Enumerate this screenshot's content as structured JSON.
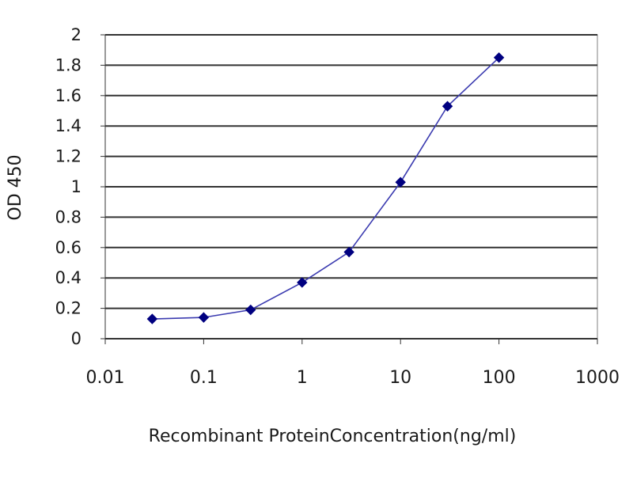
{
  "chart_data": {
    "type": "scatter",
    "xlabel": "Recombinant ProteinConcentration(ng/ml)",
    "ylabel": "OD 450",
    "xscale": "log",
    "xlim": [
      0.01,
      1000
    ],
    "ylim": [
      0,
      2
    ],
    "x_ticks": [
      0.01,
      0.1,
      1,
      10,
      100,
      1000
    ],
    "x_tick_labels": [
      "0.01",
      "0.1",
      "1",
      "10",
      "100",
      "1000"
    ],
    "y_ticks": [
      0,
      0.2,
      0.4,
      0.6,
      0.8,
      1,
      1.2,
      1.4,
      1.6,
      1.8,
      2
    ],
    "y_tick_labels": [
      "0",
      "0.2",
      "0.4",
      "0.6",
      "0.8",
      "1",
      "1.2",
      "1.4",
      "1.6",
      "1.8",
      "2"
    ],
    "grid": "horizontal",
    "legend": "none",
    "series": [
      {
        "x": [
          0.03,
          0.1,
          0.3,
          1,
          3,
          10,
          30,
          100
        ],
        "y": [
          0.13,
          0.14,
          0.19,
          0.37,
          0.57,
          1.03,
          1.53,
          1.85
        ],
        "color": "#000080",
        "line_color": "#3b3bb0",
        "marker": "diamond"
      }
    ]
  }
}
